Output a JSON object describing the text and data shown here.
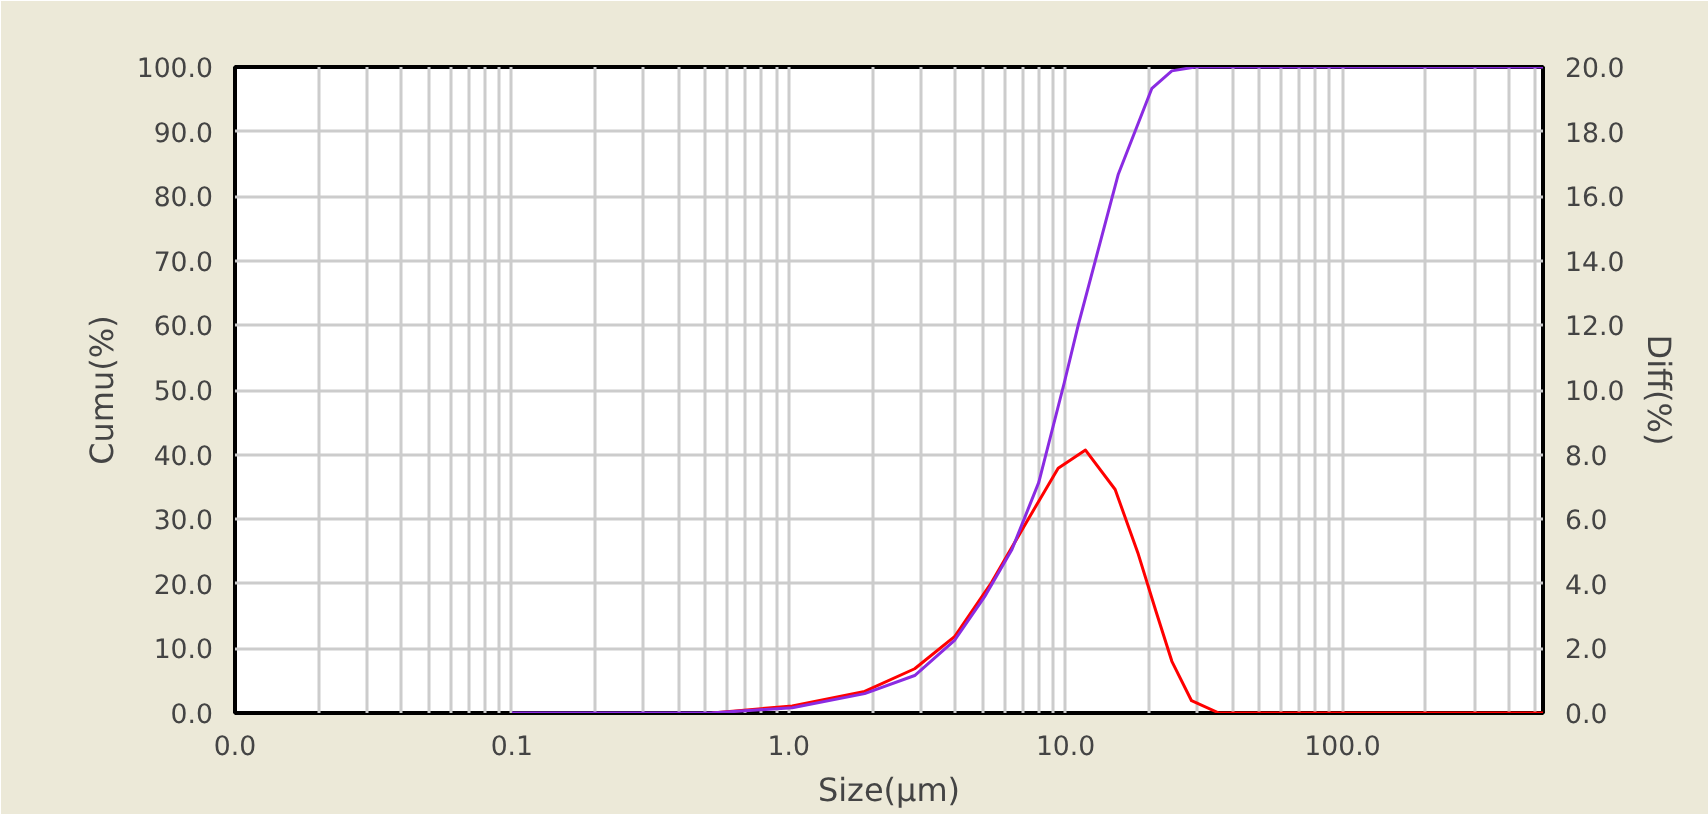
{
  "chart_data": {
    "type": "line",
    "xlabel": "Size(µm)",
    "ylabel": "Cumu(%)",
    "y2label": "Diff(%)",
    "log": "x",
    "grid": true,
    "marker": "none",
    "line_style": "solid",
    "xlim": [
      0.01,
      530
    ],
    "xticks": [
      {
        "value": 0.01,
        "label": "0.0"
      },
      {
        "value": 0.1,
        "label": "0.1"
      },
      {
        "value": 1,
        "label": "1.0"
      },
      {
        "value": 10,
        "label": "10.0"
      },
      {
        "value": 100,
        "label": "100.0"
      }
    ],
    "ylim": [
      0,
      100
    ],
    "yticks": [
      {
        "value": 0,
        "label": "0.0"
      },
      {
        "value": 10,
        "label": "10.0"
      },
      {
        "value": 20,
        "label": "20.0"
      },
      {
        "value": 30,
        "label": "30.0"
      },
      {
        "value": 40,
        "label": "40.0"
      },
      {
        "value": 50,
        "label": "50.0"
      },
      {
        "value": 60,
        "label": "60.0"
      },
      {
        "value": 70,
        "label": "70.0"
      },
      {
        "value": 80,
        "label": "80.0"
      },
      {
        "value": 90,
        "label": "90.0"
      },
      {
        "value": 100,
        "label": "100.0"
      }
    ],
    "y2lim": [
      0,
      20
    ],
    "y2ticks": [
      {
        "value": 0,
        "label": "0.0"
      },
      {
        "value": 2,
        "label": "2.0"
      },
      {
        "value": 4,
        "label": "4.0"
      },
      {
        "value": 6,
        "label": "6.0"
      },
      {
        "value": 8,
        "label": "8.0"
      },
      {
        "value": 10,
        "label": "10.0"
      },
      {
        "value": 12,
        "label": "12.0"
      },
      {
        "value": 14,
        "label": "14.0"
      },
      {
        "value": 16,
        "label": "16.0"
      },
      {
        "value": 18,
        "label": "18.0"
      },
      {
        "value": 20,
        "label": "20.0"
      }
    ],
    "series": [
      {
        "color": "#ff0000",
        "axis": "y2",
        "x": [
          0.53,
          1.03,
          1.88,
          2.85,
          3.98,
          5.4,
          7.1,
          9.4,
          11.8,
          15.1,
          18.3,
          21.2,
          24.2,
          28.5,
          35.8,
          530
        ],
        "values": [
          0,
          0.22,
          0.67,
          1.37,
          2.37,
          4.04,
          5.8,
          7.58,
          8.14,
          6.92,
          4.92,
          3.15,
          1.6,
          0.38,
          0,
          0
        ]
      },
      {
        "color": "#8a2be2",
        "axis": "y",
        "x": [
          0.1,
          0.52,
          1.03,
          1.88,
          2.85,
          3.98,
          5.1,
          6.4,
          8.0,
          9.9,
          11.1,
          12.8,
          15.5,
          20.5,
          24.2,
          29.4,
          530
        ],
        "values": [
          0,
          0,
          0.8,
          3.0,
          5.8,
          11.3,
          18,
          25.3,
          35.7,
          51.2,
          60,
          70,
          83.4,
          96.7,
          99.4,
          100,
          100
        ]
      }
    ]
  }
}
